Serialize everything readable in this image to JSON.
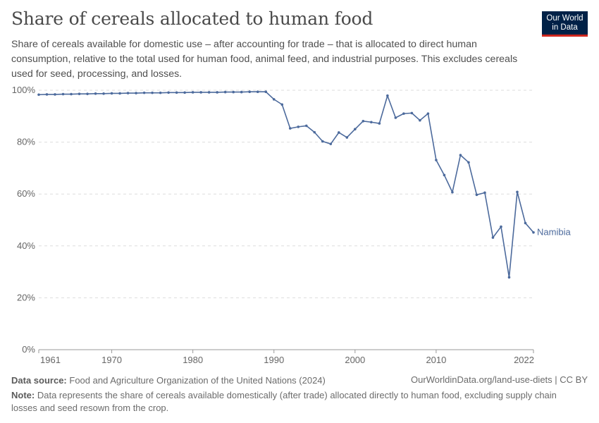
{
  "header": {
    "title": "Share of cereals allocated to human food",
    "subtitle": "Share of cereals available for domestic use – after accounting for trade – that is allocated to direct human consumption, relative to the total used for human food, animal feed, and industrial purposes. This excludes cereals used for seed, processing, and losses."
  },
  "logo": {
    "line1": "Our World",
    "line2": "in Data",
    "bg": "#002147",
    "accent": "#ce261e"
  },
  "footer": {
    "source_label": "Data source:",
    "source_text": "Food and Agriculture Organization of the United Nations (2024)",
    "url": "OurWorldinData.org/land-use-diets | CC BY",
    "note_label": "Note:",
    "note_text": "Data represents the share of cereals available domestically (after trade) allocated directly to human food, excluding supply chain losses and seed resown from the crop."
  },
  "chart_data": {
    "type": "line",
    "title": "Share of cereals allocated to human food",
    "xlabel": "",
    "ylabel": "",
    "xlim": [
      1961,
      2022
    ],
    "ylim": [
      0,
      100
    ],
    "y_ticks": [
      0,
      20,
      40,
      60,
      80,
      100
    ],
    "y_tick_labels": [
      "0%",
      "20%",
      "40%",
      "60%",
      "80%",
      "100%"
    ],
    "x_ticks": [
      1961,
      1970,
      1980,
      1990,
      2000,
      2010,
      2022
    ],
    "x_tick_labels": [
      "1961",
      "1970",
      "1980",
      "1990",
      "2000",
      "2010",
      "2022"
    ],
    "grid": "horizontal dashed",
    "line_color": "#4c6a9c",
    "series": [
      {
        "name": "Namibia",
        "x": [
          1961,
          1962,
          1963,
          1964,
          1965,
          1966,
          1967,
          1968,
          1969,
          1970,
          1971,
          1972,
          1973,
          1974,
          1975,
          1976,
          1977,
          1978,
          1979,
          1980,
          1981,
          1982,
          1983,
          1984,
          1985,
          1986,
          1987,
          1988,
          1989,
          1990,
          1991,
          1992,
          1993,
          1994,
          1995,
          1996,
          1997,
          1998,
          1999,
          2000,
          2001,
          2002,
          2003,
          2004,
          2005,
          2006,
          2007,
          2008,
          2009,
          2010,
          2011,
          2012,
          2013,
          2014,
          2015,
          2016,
          2017,
          2018,
          2019,
          2020,
          2021,
          2022
        ],
        "values": [
          98.3,
          98.4,
          98.4,
          98.5,
          98.5,
          98.6,
          98.6,
          98.7,
          98.7,
          98.8,
          98.8,
          98.9,
          98.9,
          99.0,
          99.0,
          99.0,
          99.1,
          99.1,
          99.1,
          99.2,
          99.2,
          99.2,
          99.2,
          99.3,
          99.3,
          99.3,
          99.4,
          99.4,
          99.4,
          96.5,
          94.5,
          85.3,
          85.9,
          86.3,
          83.8,
          80.3,
          79.3,
          83.7,
          81.8,
          85.0,
          88.1,
          87.7,
          87.2,
          97.9,
          89.4,
          91.0,
          91.2,
          88.4,
          91.0,
          73.1,
          67.3,
          60.7,
          75.0,
          72.2,
          59.7,
          60.5,
          43.2,
          47.4,
          27.9,
          60.8,
          48.8,
          45.2
        ]
      }
    ]
  }
}
